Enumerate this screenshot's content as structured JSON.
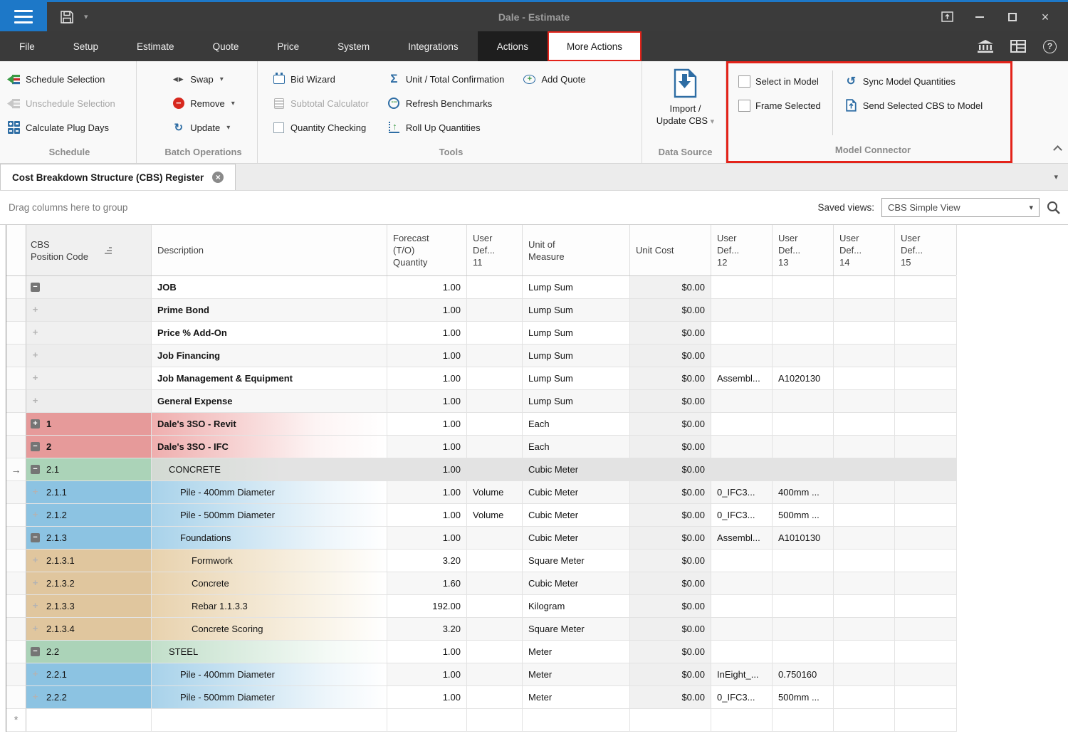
{
  "colors": {
    "accent_blue": "#1d78c8",
    "annotation_red": "#e3231a",
    "row_red": "#e69a9a",
    "row_green": "#abd3b8",
    "row_blue": "#8cc3e2",
    "row_tan": "#e0c69e"
  },
  "titlebar": {
    "title": "Dale - Estimate"
  },
  "menu": {
    "items": [
      "File",
      "Setup",
      "Estimate",
      "Quote",
      "Price",
      "System",
      "Integrations",
      "Actions",
      "More Actions"
    ],
    "dark_item": "Actions",
    "active_item": "More Actions"
  },
  "ribbon": {
    "schedule": {
      "label": "Schedule",
      "items": [
        {
          "label": "Schedule Selection"
        },
        {
          "label": "Unschedule Selection",
          "disabled": true
        },
        {
          "label": "Calculate Plug Days"
        }
      ]
    },
    "batch": {
      "label": "Batch Operations",
      "items": [
        {
          "label": "Swap"
        },
        {
          "label": "Remove"
        },
        {
          "label": "Update"
        }
      ]
    },
    "tools": {
      "label": "Tools",
      "col1": [
        {
          "label": "Bid Wizard"
        },
        {
          "label": "Subtotal Calculator",
          "disabled": true
        },
        {
          "label": "Quantity Checking"
        }
      ],
      "col2": [
        {
          "label": "Unit / Total Confirmation"
        },
        {
          "label": "Refresh Benchmarks"
        },
        {
          "label": "Roll Up Quantities"
        }
      ],
      "col3": [
        {
          "label": "Add Quote"
        }
      ]
    },
    "datasource": {
      "label": "Data Source",
      "button": "Import /\nUpdate CBS"
    },
    "model": {
      "label": "Model Connector",
      "checkboxes": [
        {
          "label": "Select in Model",
          "checked": false
        },
        {
          "label": "Frame Selected",
          "checked": false
        }
      ],
      "buttons": [
        {
          "label": "Sync Model Quantities"
        },
        {
          "label": "Send Selected CBS to Model"
        }
      ]
    }
  },
  "tab": {
    "title": "Cost Breakdown Structure (CBS) Register"
  },
  "groupbar": {
    "drag_hint": "Drag columns here to group",
    "saved_views_label": "Saved views:",
    "saved_view_value": "CBS Simple View"
  },
  "grid": {
    "columns": [
      {
        "label": "CBS\nPosition Code"
      },
      {
        "label": "Description"
      },
      {
        "label": "Forecast\n(T/O)\nQuantity"
      },
      {
        "label": "User\nDef...\n11"
      },
      {
        "label": "Unit of\nMeasure"
      },
      {
        "label": "Unit Cost"
      },
      {
        "label": "User\nDef...\n12"
      },
      {
        "label": "User\nDef...\n13"
      },
      {
        "label": "User\nDef...\n14"
      },
      {
        "label": "User\nDef...\n15"
      }
    ],
    "rows": [
      {
        "code": "",
        "desc": "JOB",
        "indent": 0,
        "expand": "minus-dark",
        "color": "",
        "bold": true,
        "selected": false,
        "qty": "1.00",
        "ud11": "",
        "uom": "Lump Sum",
        "cost": "$0.00",
        "ud12": "",
        "ud13": "",
        "ud14": "",
        "ud15": ""
      },
      {
        "code": "",
        "desc": "Prime Bond",
        "indent": 0,
        "expand": "plus-light",
        "color": "",
        "bold": true,
        "selected": false,
        "qty": "1.00",
        "ud11": "",
        "uom": "Lump Sum",
        "cost": "$0.00",
        "ud12": "",
        "ud13": "",
        "ud14": "",
        "ud15": ""
      },
      {
        "code": "",
        "desc": "Price % Add-On",
        "indent": 0,
        "expand": "plus-light",
        "color": "",
        "bold": true,
        "selected": false,
        "qty": "1.00",
        "ud11": "",
        "uom": "Lump Sum",
        "cost": "$0.00",
        "ud12": "",
        "ud13": "",
        "ud14": "",
        "ud15": ""
      },
      {
        "code": "",
        "desc": "Job Financing",
        "indent": 0,
        "expand": "plus-light",
        "color": "",
        "bold": true,
        "selected": false,
        "qty": "1.00",
        "ud11": "",
        "uom": "Lump Sum",
        "cost": "$0.00",
        "ud12": "",
        "ud13": "",
        "ud14": "",
        "ud15": ""
      },
      {
        "code": "",
        "desc": "Job Management & Equipment",
        "indent": 0,
        "expand": "plus-light",
        "color": "",
        "bold": true,
        "selected": false,
        "qty": "1.00",
        "ud11": "",
        "uom": "Lump Sum",
        "cost": "$0.00",
        "ud12": "Assembl...",
        "ud13": "A1020130",
        "ud14": "",
        "ud15": ""
      },
      {
        "code": "",
        "desc": "General Expense",
        "indent": 0,
        "expand": "plus-light",
        "color": "",
        "bold": true,
        "selected": false,
        "qty": "1.00",
        "ud11": "",
        "uom": "Lump Sum",
        "cost": "$0.00",
        "ud12": "",
        "ud13": "",
        "ud14": "",
        "ud15": ""
      },
      {
        "code": "1",
        "desc": "Dale's 3SO - Revit",
        "indent": 0,
        "expand": "plus-dark",
        "color": "red",
        "bold": true,
        "selected": false,
        "qty": "1.00",
        "ud11": "",
        "uom": "Each",
        "cost": "$0.00",
        "ud12": "",
        "ud13": "",
        "ud14": "",
        "ud15": ""
      },
      {
        "code": "2",
        "desc": "Dale's 3SO - IFC",
        "indent": 0,
        "expand": "minus-dark",
        "color": "red",
        "bold": true,
        "selected": false,
        "qty": "1.00",
        "ud11": "",
        "uom": "Each",
        "cost": "$0.00",
        "ud12": "",
        "ud13": "",
        "ud14": "",
        "ud15": ""
      },
      {
        "code": "2.1",
        "desc": "CONCRETE",
        "indent": 1,
        "expand": "minus-dark",
        "color": "green",
        "bold": false,
        "selected": true,
        "qty": "1.00",
        "ud11": "",
        "uom": "Cubic Meter",
        "cost": "$0.00",
        "ud12": "",
        "ud13": "",
        "ud14": "",
        "ud15": ""
      },
      {
        "code": "2.1.1",
        "desc": "Pile - 400mm Diameter",
        "indent": 2,
        "expand": "plus-light",
        "color": "blue",
        "bold": false,
        "selected": false,
        "qty": "1.00",
        "ud11": "Volume",
        "uom": "Cubic Meter",
        "cost": "$0.00",
        "ud12": "0_IFC3...",
        "ud13": "400mm ...",
        "ud14": "",
        "ud15": ""
      },
      {
        "code": "2.1.2",
        "desc": "Pile - 500mm Diameter",
        "indent": 2,
        "expand": "plus-light",
        "color": "blue",
        "bold": false,
        "selected": false,
        "qty": "1.00",
        "ud11": "Volume",
        "uom": "Cubic Meter",
        "cost": "$0.00",
        "ud12": "0_IFC3...",
        "ud13": "500mm ...",
        "ud14": "",
        "ud15": ""
      },
      {
        "code": "2.1.3",
        "desc": "Foundations",
        "indent": 2,
        "expand": "minus-dark",
        "color": "blue",
        "bold": false,
        "selected": false,
        "qty": "1.00",
        "ud11": "",
        "uom": "Cubic Meter",
        "cost": "$0.00",
        "ud12": "Assembl...",
        "ud13": "A1010130",
        "ud14": "",
        "ud15": ""
      },
      {
        "code": "2.1.3.1",
        "desc": "Formwork",
        "indent": 3,
        "expand": "plus-light",
        "color": "tan",
        "bold": false,
        "selected": false,
        "qty": "3.20",
        "ud11": "",
        "uom": "Square Meter",
        "cost": "$0.00",
        "ud12": "",
        "ud13": "",
        "ud14": "",
        "ud15": ""
      },
      {
        "code": "2.1.3.2",
        "desc": "Concrete",
        "indent": 3,
        "expand": "plus-light",
        "color": "tan",
        "bold": false,
        "selected": false,
        "qty": "1.60",
        "ud11": "",
        "uom": "Cubic Meter",
        "cost": "$0.00",
        "ud12": "",
        "ud13": "",
        "ud14": "",
        "ud15": ""
      },
      {
        "code": "2.1.3.3",
        "desc": "Rebar 1.1.3.3",
        "indent": 3,
        "expand": "plus-light",
        "color": "tan",
        "bold": false,
        "selected": false,
        "qty": "192.00",
        "ud11": "",
        "uom": "Kilogram",
        "cost": "$0.00",
        "ud12": "",
        "ud13": "",
        "ud14": "",
        "ud15": ""
      },
      {
        "code": "2.1.3.4",
        "desc": "Concrete Scoring",
        "indent": 3,
        "expand": "plus-light",
        "color": "tan",
        "bold": false,
        "selected": false,
        "qty": "3.20",
        "ud11": "",
        "uom": "Square Meter",
        "cost": "$0.00",
        "ud12": "",
        "ud13": "",
        "ud14": "",
        "ud15": ""
      },
      {
        "code": "2.2",
        "desc": "STEEL",
        "indent": 1,
        "expand": "minus-dark",
        "color": "green",
        "bold": false,
        "selected": false,
        "qty": "1.00",
        "ud11": "",
        "uom": "Meter",
        "cost": "$0.00",
        "ud12": "",
        "ud13": "",
        "ud14": "",
        "ud15": ""
      },
      {
        "code": "2.2.1",
        "desc": "Pile - 400mm Diameter",
        "indent": 2,
        "expand": "plus-light",
        "color": "blue",
        "bold": false,
        "selected": false,
        "qty": "1.00",
        "ud11": "",
        "uom": "Meter",
        "cost": "$0.00",
        "ud12": "InEight_...",
        "ud13": "0.750160",
        "ud14": "",
        "ud15": ""
      },
      {
        "code": "2.2.2",
        "desc": "Pile - 500mm Diameter",
        "indent": 2,
        "expand": "plus-light",
        "color": "blue",
        "bold": false,
        "selected": false,
        "qty": "1.00",
        "ud11": "",
        "uom": "Meter",
        "cost": "$0.00",
        "ud12": "0_IFC3...",
        "ud13": "500mm ...",
        "ud14": "",
        "ud15": ""
      },
      {
        "newrow": true,
        "code": "",
        "desc": "",
        "indent": 0,
        "expand": "",
        "color": "",
        "bold": false,
        "selected": false,
        "qty": "",
        "ud11": "",
        "uom": "",
        "cost": "",
        "ud12": "",
        "ud13": "",
        "ud14": "",
        "ud15": ""
      }
    ]
  }
}
